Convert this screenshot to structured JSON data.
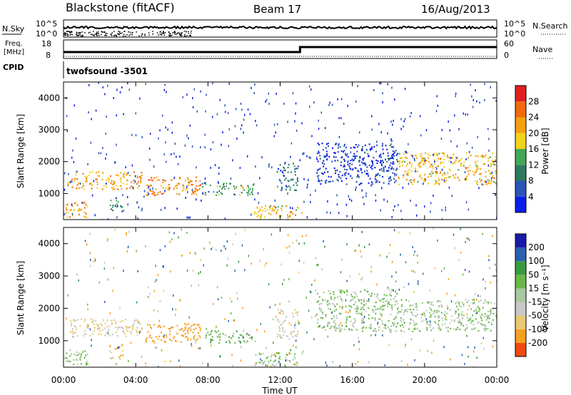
{
  "header": {
    "station": "Blackstone (fitACF)",
    "beam": "Beam 17",
    "date": "16/Aug/2013"
  },
  "top_panels": {
    "nsky_label": "N.Sky",
    "nsearch_label": "N.Search",
    "noise_ticks": [
      "10^5",
      "10^0"
    ],
    "freq_label_1": "Freq.",
    "freq_label_2": "[MHz]",
    "freq_ticks": [
      "18",
      "8"
    ],
    "nave_label": "Nave",
    "nave_ticks": [
      "60",
      "0"
    ],
    "cpid_label": "CPID",
    "cpid_value": "twofsound -3501",
    "freq_step_time_hr": 13.1
  },
  "colors": {
    "power_scale": [
      "#0b1fe8",
      "#2a54b8",
      "#2f7a5e",
      "#42a858",
      "#f2d21a",
      "#f4a010",
      "#f06a10",
      "#e02020"
    ],
    "velocity_scale": [
      "#e00000",
      "#f04a10",
      "#f5a020",
      "#e8c870",
      "#c8c8c8",
      "#a8c8a0",
      "#6ab848",
      "#3a9a40",
      "#2a60b0",
      "#1a1aa8"
    ]
  },
  "power_colorbar": {
    "label": "Power [dB]",
    "ticks": [
      "4",
      "8",
      "12",
      "16",
      "20",
      "24",
      "28"
    ]
  },
  "velocity_colorbar": {
    "label": "Velocity [m s⁻¹]",
    "ticks": [
      "-200",
      "-100",
      "-50",
      "-15",
      "15",
      "50",
      "100",
      "200"
    ]
  },
  "chart_data": {
    "type": "heatmap",
    "xlabel": "Time UT",
    "ylabel": "Slant Range [km]",
    "x_ticks": [
      "00:00",
      "04:00",
      "08:00",
      "12:00",
      "16:00",
      "20:00",
      "00:00"
    ],
    "y_ticks": [
      "1000",
      "2000",
      "3000",
      "4000"
    ],
    "xlim_hours": [
      0,
      24
    ],
    "ylim_km": [
      180,
      4500
    ],
    "echo_regions": [
      {
        "t0": 0.2,
        "t1": 4.3,
        "r0": 1150,
        "r1": 1700,
        "power_db": 24,
        "vel": -60
      },
      {
        "t0": 4.5,
        "t1": 7.6,
        "r0": 950,
        "r1": 1550,
        "power_db": 26,
        "vel": -150
      },
      {
        "t0": 7.6,
        "t1": 10.6,
        "r0": 950,
        "r1": 1350,
        "power_db": 14,
        "vel": 30
      },
      {
        "t0": 0.0,
        "t1": 1.3,
        "r0": 250,
        "r1": 750,
        "power_db": 24,
        "vel": 10
      },
      {
        "t0": 2.5,
        "t1": 3.3,
        "r0": 450,
        "r1": 900,
        "power_db": 12,
        "vel": -80
      },
      {
        "t0": 10.5,
        "t1": 13.2,
        "r0": 200,
        "r1": 650,
        "power_db": 22,
        "vel": 5
      },
      {
        "t0": 11.8,
        "t1": 13.0,
        "r0": 1100,
        "r1": 2000,
        "power_db": 10,
        "vel": -40
      },
      {
        "t0": 14.0,
        "t1": 18.5,
        "r0": 1300,
        "r1": 2600,
        "power_db": 6,
        "vel": 10
      },
      {
        "t0": 18.5,
        "t1": 24.0,
        "r0": 1300,
        "r1": 2300,
        "power_db": 22,
        "vel": 5
      }
    ]
  }
}
